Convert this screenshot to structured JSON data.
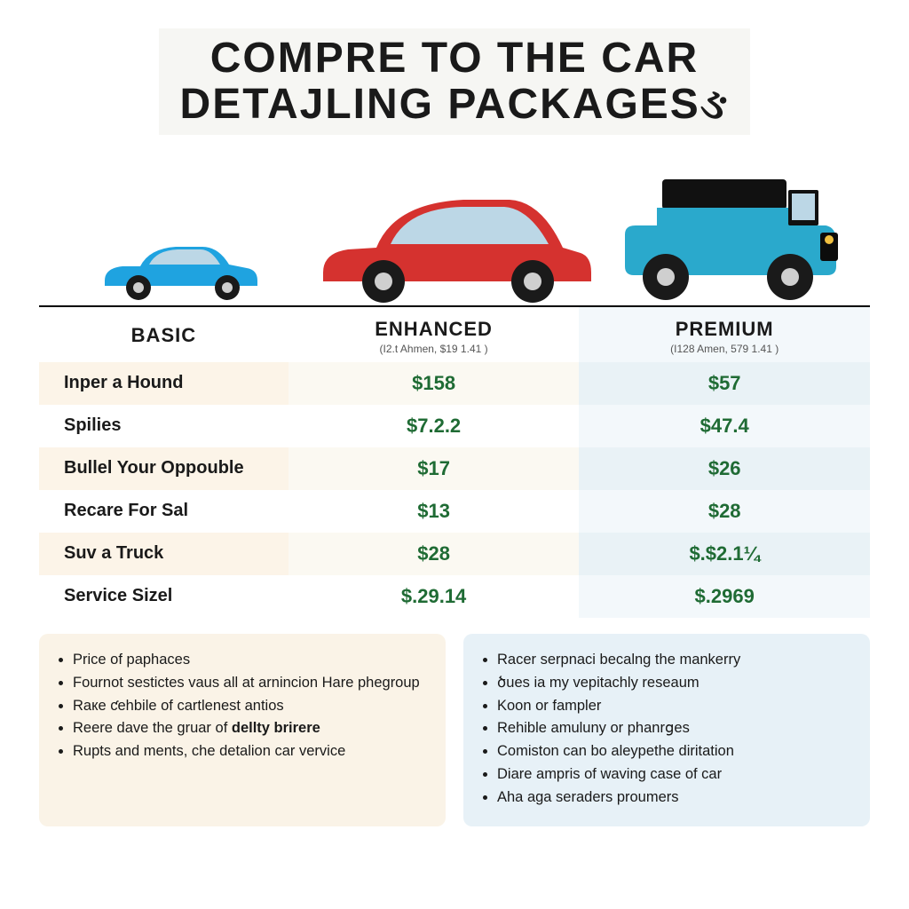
{
  "title_line1": "COMPRE TO THE CAR",
  "title_line2": "DETAJLING PACKAGESઙ",
  "colors": {
    "basic_bg1": "#fcf4e8",
    "basic_bg2": "#ffffff",
    "enh_bg1": "#fbf9f2",
    "enh_bg2": "#ffffff",
    "prem_bg1": "#e9f2f6",
    "prem_bg2": "#f3f8fb",
    "price_text": "#1f6b34",
    "box_left_bg": "#faf3e7",
    "box_right_bg": "#e7f1f7",
    "car_blue": "#1fa3e0",
    "car_red": "#d5322f",
    "car_teal": "#2aa9cc",
    "tire": "#1a1a1a",
    "glass": "#bcd7e6"
  },
  "columns": {
    "basic": {
      "label": "BASIC",
      "sub": ""
    },
    "enhanced": {
      "label": "ENHANCED",
      "sub": "(I2.t Ahmen, $19 1.41 )"
    },
    "premium": {
      "label": "PREMIUM",
      "sub": "(I128 Amen, 579 1.41 )"
    }
  },
  "rows": [
    {
      "label": "Inper a Hound",
      "enh": "$158",
      "prem": "$57"
    },
    {
      "label": "Spilies",
      "enh": "$7.2.2",
      "prem": "$47.4"
    },
    {
      "label": "Bullel Your Oppouble",
      "enh": "$17",
      "prem": "$26"
    },
    {
      "label": "Recare For Sal",
      "enh": "$13",
      "prem": "$28"
    },
    {
      "label": "Suv a Truck",
      "enh": "$28",
      "prem": "$.$2.1¼"
    },
    {
      "label": "Service Sizel",
      "enh": "$.29.14",
      "prem": "$.2969"
    }
  ],
  "box_left": [
    "Price of paphaces",
    "Fournot sestictes vaus all at arnincion Hare phegroup",
    "Raке ƈehbile of cartlenest antios",
    "Reere dave the gruar of <b>dellty brirere</b>",
    "Rupts and ments, che detalion car vervice"
  ],
  "box_right": [
    "Racer serpnaci becalng the mankerry",
    "ծues iа my vepitachly reseaum",
    "Koon or fampler",
    "Rehible amuluny or phanrցes",
    "Comiston can bo aleypethe diritation",
    "Diare ampris of waving case of car",
    "Aha aga seraders proumers"
  ]
}
